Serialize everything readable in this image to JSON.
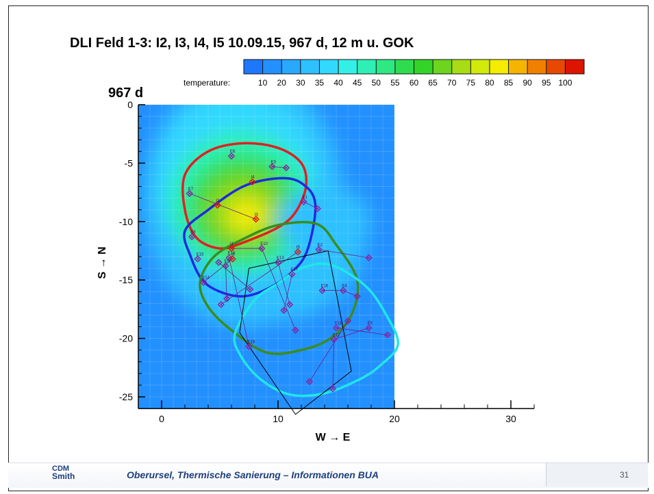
{
  "slide": {
    "title": "DLI Feld 1-3: I2, I3, I4, I5 10.09.15, 967 d, 12 m u. GOK",
    "footer_text": "Oberursel, Thermische Sanierung – Informationen BUA",
    "page_number": "31",
    "logo_line1": "CDM",
    "logo_line2": "Smith"
  },
  "chart_data": {
    "type": "heatmap",
    "title": "967 d",
    "xlabel": "W → E",
    "ylabel": "S → N",
    "xlim": [
      -2,
      32
    ],
    "ylim": [
      -26,
      0
    ],
    "xticks": [
      0,
      10,
      20,
      30
    ],
    "yticks": [
      0,
      -5,
      -10,
      -15,
      -20,
      -25
    ],
    "colorbar": {
      "label": "temperature:",
      "levels": [
        10,
        20,
        30,
        35,
        40,
        45,
        50,
        55,
        60,
        65,
        70,
        75,
        80,
        85,
        90,
        95,
        100
      ],
      "colors": [
        "#1e78ff",
        "#2390ff",
        "#29a8ff",
        "#2ec0ff",
        "#33d8ff",
        "#33f0e6",
        "#2ef0b4",
        "#2ee882",
        "#2edc50",
        "#33d428",
        "#6ed41e",
        "#a8dc14",
        "#d2ea0a",
        "#f5ec00",
        "#f5b400",
        "#f08000",
        "#e84800",
        "#dc1400"
      ]
    },
    "field_extent": {
      "x": [
        -2,
        20
      ],
      "y": [
        -26,
        0
      ]
    },
    "hotspot": {
      "x": 7,
      "y": -9,
      "peak_temperature": 80
    },
    "zones": [
      {
        "name": "red zone",
        "color": "#e02020",
        "points": [
          [
            2,
            -6
          ],
          [
            4,
            -4
          ],
          [
            7,
            -3.3
          ],
          [
            10,
            -3.7
          ],
          [
            12,
            -5
          ],
          [
            12.4,
            -7
          ],
          [
            11.5,
            -9.2
          ],
          [
            10,
            -10.5
          ],
          [
            7,
            -11.8
          ],
          [
            5,
            -12.3
          ],
          [
            3,
            -11.4
          ],
          [
            2,
            -9
          ]
        ]
      },
      {
        "name": "blue zone",
        "color": "#1e2ae0",
        "points": [
          [
            2,
            -10.8
          ],
          [
            4,
            -9
          ],
          [
            7,
            -7
          ],
          [
            10,
            -6.3
          ],
          [
            12,
            -6.7
          ],
          [
            13.2,
            -8.5
          ],
          [
            12.5,
            -12.5
          ],
          [
            11,
            -14.5
          ],
          [
            9,
            -15.8
          ],
          [
            7,
            -16.4
          ],
          [
            5,
            -16
          ],
          [
            3.5,
            -15
          ],
          [
            2.5,
            -13
          ]
        ]
      },
      {
        "name": "green zone",
        "color": "#3a8c1e",
        "points": [
          [
            3.3,
            -15.2
          ],
          [
            4.5,
            -13
          ],
          [
            7,
            -11.5
          ],
          [
            10,
            -10.3
          ],
          [
            13.3,
            -10.2
          ],
          [
            15,
            -12
          ],
          [
            16.8,
            -15
          ],
          [
            16.3,
            -18
          ],
          [
            14.5,
            -20
          ],
          [
            12,
            -21
          ],
          [
            9,
            -21.2
          ],
          [
            6,
            -19.3
          ],
          [
            4,
            -17.3
          ]
        ]
      },
      {
        "name": "cyan zone",
        "color": "#20e6e6",
        "points": [
          [
            6.3,
            -19.6
          ],
          [
            8,
            -16.7
          ],
          [
            10,
            -15.3
          ],
          [
            12,
            -14
          ],
          [
            14.5,
            -13.7
          ],
          [
            17.5,
            -15.5
          ],
          [
            19.3,
            -18
          ],
          [
            20.3,
            -20.5
          ],
          [
            18.8,
            -22.3
          ],
          [
            17,
            -23.5
          ],
          [
            14,
            -24.7
          ],
          [
            11,
            -24.8
          ],
          [
            8.5,
            -23.5
          ],
          [
            6.8,
            -21.5
          ]
        ]
      }
    ],
    "polygon_frame": [
      [
        7.5,
        -14
      ],
      [
        14.3,
        -12.5
      ],
      [
        16.3,
        -22.8
      ],
      [
        11.5,
        -26.5
      ],
      [
        6.7,
        -19.5
      ]
    ],
    "wells": [
      {
        "label": "E6",
        "x": 6,
        "y": -4.4,
        "type": "E"
      },
      {
        "label": "E3",
        "x": 9.5,
        "y": -5.3,
        "type": "E"
      },
      {
        "label": "",
        "x": 10.7,
        "y": -5.4,
        "type": "E"
      },
      {
        "label": "I4",
        "x": 7.8,
        "y": -6.6,
        "type": "I"
      },
      {
        "label": "I2",
        "x": 4.8,
        "y": -8.6,
        "type": "I"
      },
      {
        "label": "E7",
        "x": 2.4,
        "y": -7.6,
        "type": "E"
      },
      {
        "label": "E1",
        "x": 12.2,
        "y": -8.3,
        "type": "E"
      },
      {
        "label": "",
        "x": 13.4,
        "y": -8.9,
        "type": "E"
      },
      {
        "label": "I3",
        "x": 8.1,
        "y": -9.8,
        "type": "I"
      },
      {
        "label": "E8",
        "x": 2.6,
        "y": -11.3,
        "type": "E"
      },
      {
        "label": "I1",
        "x": 6,
        "y": -12.3,
        "type": "I"
      },
      {
        "label": "E10",
        "x": 8.6,
        "y": -12.3,
        "type": "E"
      },
      {
        "label": "I5",
        "x": 11.7,
        "y": -12.6,
        "type": "I"
      },
      {
        "label": "E2",
        "x": 13.5,
        "y": -12.4,
        "type": "E"
      },
      {
        "label": "",
        "x": 17.8,
        "y": -13.1,
        "type": "E"
      },
      {
        "label": "E15",
        "x": 3.1,
        "y": -13.2,
        "type": "E"
      },
      {
        "label": "E18",
        "x": 5.8,
        "y": -13.1,
        "type": "E"
      },
      {
        "label": "I6",
        "x": 6.1,
        "y": -13.2,
        "type": "I"
      },
      {
        "label": "",
        "x": 4.9,
        "y": -13.5,
        "type": "E"
      },
      {
        "label": "E9",
        "x": 5.5,
        "y": -13.8,
        "type": "E"
      },
      {
        "label": "E13",
        "x": 10,
        "y": -13.5,
        "type": "E"
      },
      {
        "label": "E17",
        "x": 11.2,
        "y": -14.5,
        "type": "E"
      },
      {
        "label": "E14",
        "x": 3.6,
        "y": -15.2,
        "type": "E"
      },
      {
        "label": "",
        "x": 7.6,
        "y": -15.8,
        "type": "E"
      },
      {
        "label": "E16",
        "x": 13.8,
        "y": -15.9,
        "type": "E"
      },
      {
        "label": "E4",
        "x": 15.6,
        "y": -15.9,
        "type": "E"
      },
      {
        "label": "",
        "x": 16.8,
        "y": -16.4,
        "type": "E"
      },
      {
        "label": "",
        "x": 5.6,
        "y": -16.6,
        "type": "E"
      },
      {
        "label": "",
        "x": 5.1,
        "y": -17.1,
        "type": "E"
      },
      {
        "label": "",
        "x": 11,
        "y": -17.1,
        "type": "E"
      },
      {
        "label": "",
        "x": 10.5,
        "y": -17.6,
        "type": "E"
      },
      {
        "label": "",
        "x": 16,
        "y": -18.5,
        "type": "E"
      },
      {
        "label": "E11",
        "x": 15,
        "y": -19.1,
        "type": "E"
      },
      {
        "label": "E5",
        "x": 17.8,
        "y": -19.1,
        "type": "E"
      },
      {
        "label": "",
        "x": 19.4,
        "y": -19.7,
        "type": "E"
      },
      {
        "label": "",
        "x": 11.5,
        "y": -19.3,
        "type": "E"
      },
      {
        "label": "E12",
        "x": 14.8,
        "y": -20.1,
        "type": "E"
      },
      {
        "label": "E19",
        "x": 7.5,
        "y": -20.7,
        "type": "E"
      },
      {
        "label": "",
        "x": 12.7,
        "y": -23.7,
        "type": "E"
      },
      {
        "label": "",
        "x": 14.7,
        "y": -24.3,
        "type": "E"
      }
    ]
  }
}
